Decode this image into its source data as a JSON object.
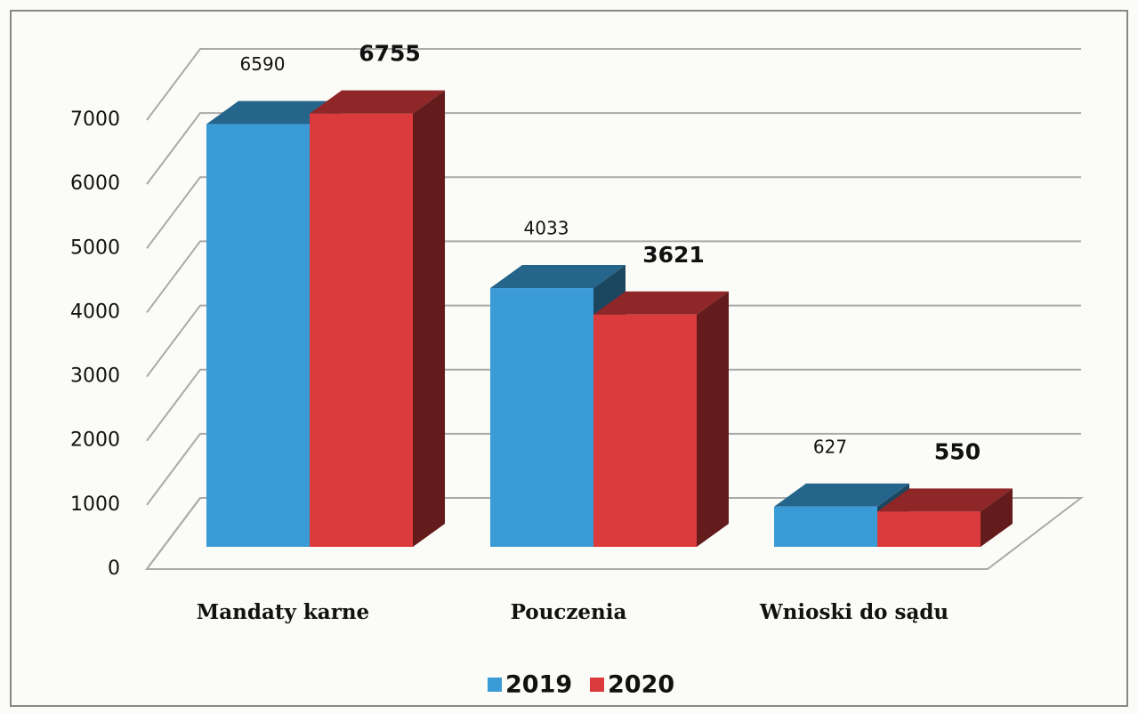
{
  "chart_data": {
    "type": "bar3d",
    "categories": [
      "Mandaty karne",
      "Pouczenia",
      "Wnioski do sądu"
    ],
    "series": [
      {
        "name": "2019",
        "color": "#3b9bd6",
        "values": [
          6590,
          4033,
          627
        ]
      },
      {
        "name": "2020",
        "color": "#dc3b3e",
        "values": [
          6755,
          3621,
          550
        ]
      }
    ],
    "ylim": [
      0,
      7000
    ],
    "yticks": [
      0,
      1000,
      2000,
      3000,
      4000,
      5000,
      6000,
      7000
    ],
    "grid": true,
    "legend": "bottom"
  }
}
